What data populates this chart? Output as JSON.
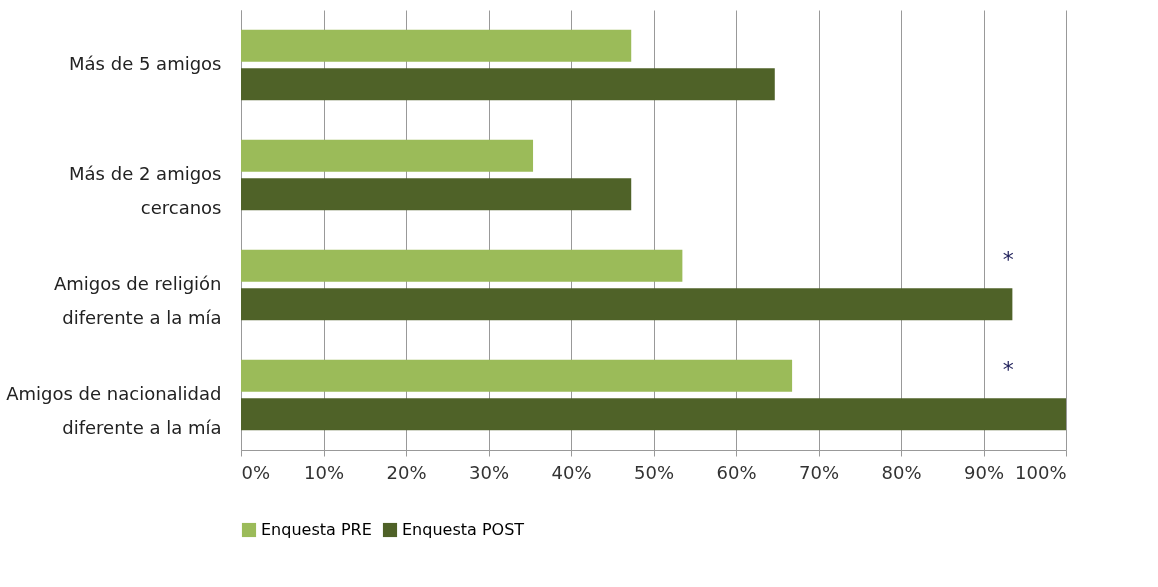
{
  "chart_data": {
    "type": "bar",
    "orientation": "horizontal",
    "categories": [
      "Más de 5 amigos",
      "Más de 2 amigos\ncercanos",
      "Amigos de religión\ndiferente a la mía",
      "Amigos de nacionalidad\ndiferente a la mía"
    ],
    "series": [
      {
        "name": "Enquesta PRE",
        "color": "#9bbb59",
        "values": [
          47.3,
          35.4,
          53.5,
          66.8
        ]
      },
      {
        "name": "Enquesta POST",
        "color": "#4f6228",
        "values": [
          64.7,
          47.3,
          93.5,
          100
        ]
      }
    ],
    "xlim": [
      0,
      100
    ],
    "xticks": [
      {
        "value": 0,
        "label": "0%"
      },
      {
        "value": 10,
        "label": "10%"
      },
      {
        "value": 20,
        "label": "20%"
      },
      {
        "value": 30,
        "label": "30%"
      },
      {
        "value": 40,
        "label": "40%"
      },
      {
        "value": 50,
        "label": "50%"
      },
      {
        "value": 60,
        "label": "60%"
      },
      {
        "value": 70,
        "label": "70%"
      },
      {
        "value": 80,
        "label": "80%"
      },
      {
        "value": 90,
        "label": "90%"
      },
      {
        "value": 100,
        "label": "100%"
      }
    ],
    "annotations": [
      "*",
      "*"
    ],
    "grid": "x",
    "legend": "bottom"
  }
}
